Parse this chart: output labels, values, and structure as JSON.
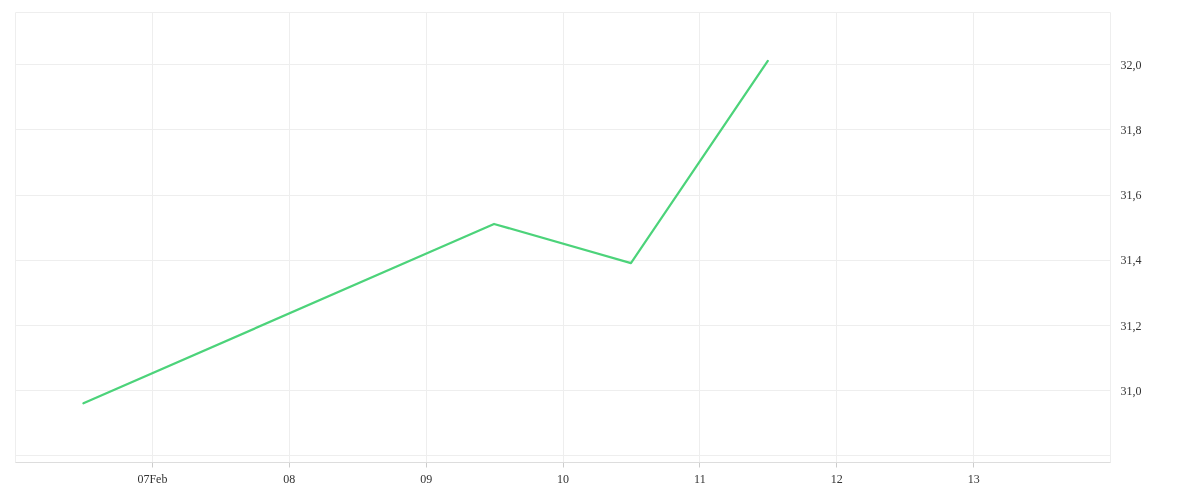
{
  "chart_data": {
    "type": "line",
    "x": [
      "--02-06T12:00",
      "--02-09T12:00",
      "--02-10T12:00",
      "--02-11T12:00"
    ],
    "series": [
      {
        "color": "#4cd37a",
        "values": [
          30.96,
          31.51,
          31.39,
          32.01
        ]
      }
    ],
    "xlim": [
      "--02-06T00:00",
      "--02-14T00:00"
    ],
    "xticks": [
      {
        "value": "--02-07T00:00",
        "label": "07Feb"
      },
      {
        "value": "--02-08T00:00",
        "label": "08"
      },
      {
        "value": "--02-09T00:00",
        "label": "09"
      },
      {
        "value": "--02-10T00:00",
        "label": "10"
      },
      {
        "value": "--02-11T00:00",
        "label": "11"
      },
      {
        "value": "--02-12T00:00",
        "label": "12"
      },
      {
        "value": "--02-13T00:00",
        "label": "13"
      }
    ],
    "ylim": [
      30.78,
      32.16
    ],
    "yticks": [
      {
        "value": 30.8,
        "label": null
      },
      {
        "value": 31.0,
        "label": "31,0"
      },
      {
        "value": 31.2,
        "label": "31,2"
      },
      {
        "value": 31.4,
        "label": "31,4"
      },
      {
        "value": 31.6,
        "label": "31,6"
      },
      {
        "value": 31.8,
        "label": "31,8"
      },
      {
        "value": 32.0,
        "label": "32,0"
      }
    ],
    "grid": true,
    "marker": "none",
    "line_style": "solid"
  }
}
